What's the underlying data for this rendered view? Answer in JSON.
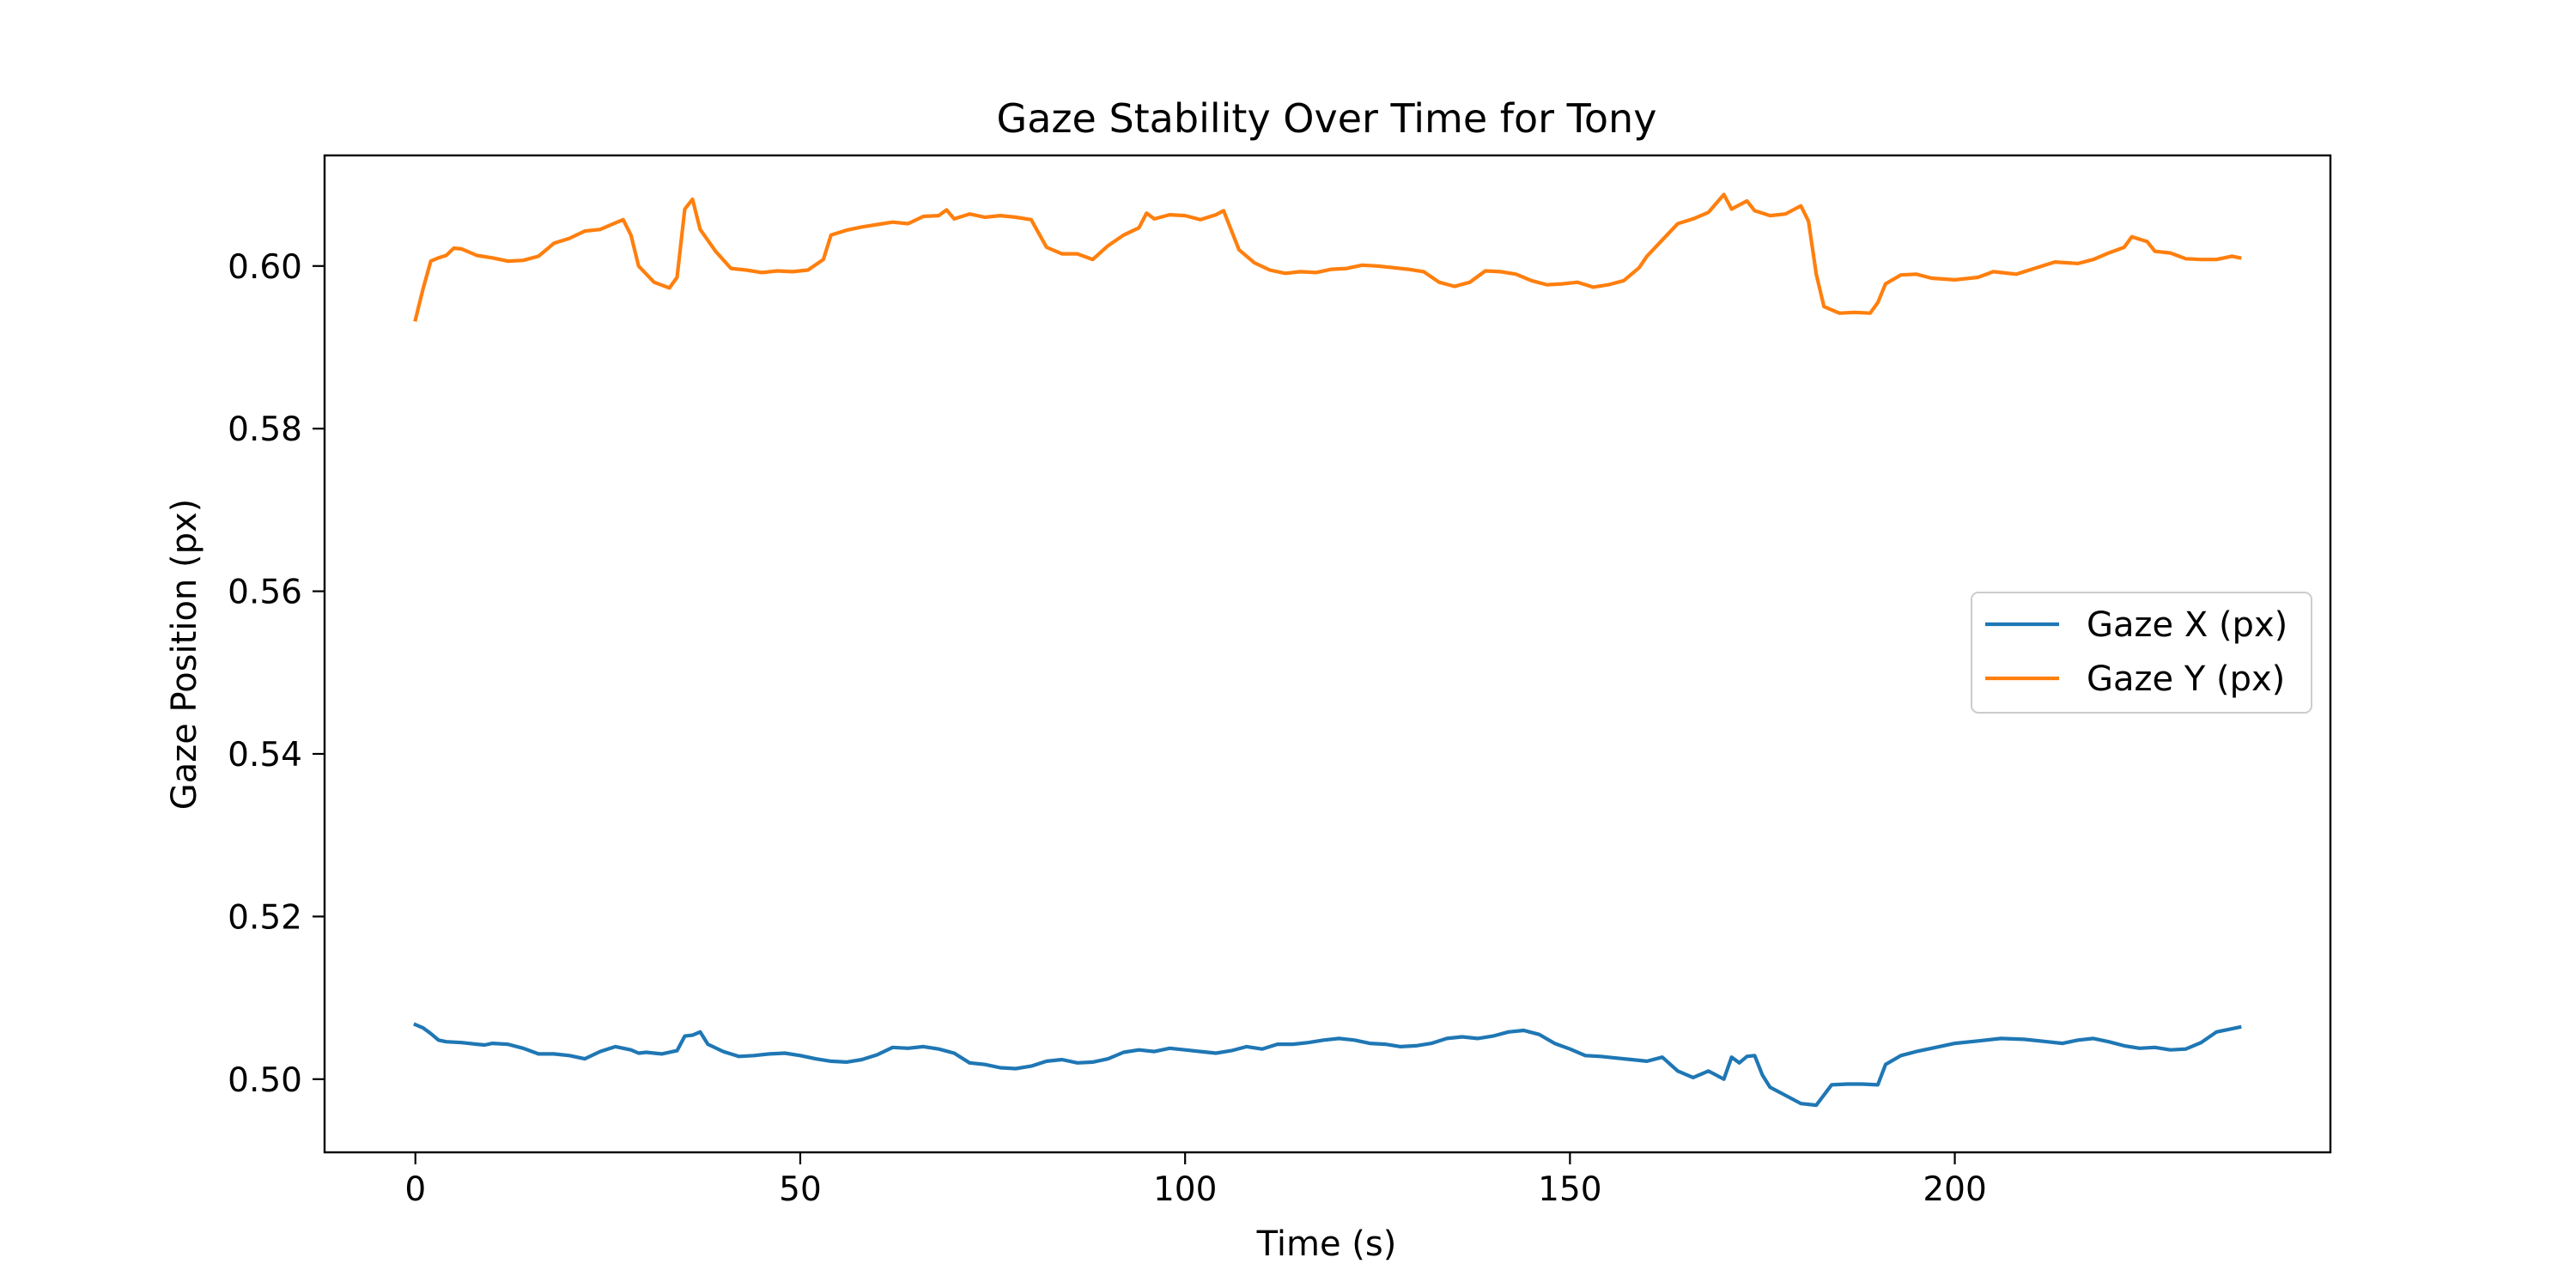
{
  "chart_data": {
    "type": "line",
    "title": "Gaze Stability Over Time for Tony",
    "xlabel": "Time (s)",
    "ylabel": "Gaze Position (px)",
    "xlim": [
      -11.8,
      248.8
    ],
    "ylim": [
      0.491,
      0.6136
    ],
    "xticks": [
      0,
      50,
      100,
      150,
      200
    ],
    "yticks": [
      0.5,
      0.52,
      0.54,
      0.56,
      0.58,
      0.6
    ],
    "xtick_labels": [
      "0",
      "50",
      "100",
      "150",
      "200"
    ],
    "ytick_labels": [
      "0.50",
      "0.52",
      "0.54",
      "0.56",
      "0.58",
      "0.60"
    ],
    "grid": false,
    "legend_position": "center-right",
    "series": [
      {
        "name": "Gaze X (px)",
        "color": "#1f77b4",
        "points": [
          [
            0,
            0.5067
          ],
          [
            1,
            0.5063
          ],
          [
            2,
            0.5056
          ],
          [
            3,
            0.5048
          ],
          [
            4,
            0.5046
          ],
          [
            6,
            0.5045
          ],
          [
            8,
            0.5043
          ],
          [
            9,
            0.5042
          ],
          [
            10,
            0.5044
          ],
          [
            12,
            0.5043
          ],
          [
            14,
            0.5038
          ],
          [
            16,
            0.5031
          ],
          [
            18,
            0.5031
          ],
          [
            20,
            0.5029
          ],
          [
            22,
            0.5025
          ],
          [
            24,
            0.5034
          ],
          [
            26,
            0.504
          ],
          [
            28,
            0.5036
          ],
          [
            29,
            0.5032
          ],
          [
            30,
            0.5033
          ],
          [
            32,
            0.5031
          ],
          [
            34,
            0.5035
          ],
          [
            35,
            0.5053
          ],
          [
            36,
            0.5054
          ],
          [
            37,
            0.5058
          ],
          [
            38,
            0.5043
          ],
          [
            40,
            0.5034
          ],
          [
            42,
            0.5028
          ],
          [
            44,
            0.5029
          ],
          [
            46,
            0.5031
          ],
          [
            48,
            0.5032
          ],
          [
            50,
            0.5029
          ],
          [
            52,
            0.5025
          ],
          [
            54,
            0.5022
          ],
          [
            56,
            0.5021
          ],
          [
            58,
            0.5024
          ],
          [
            60,
            0.503
          ],
          [
            62,
            0.5039
          ],
          [
            64,
            0.5038
          ],
          [
            66,
            0.504
          ],
          [
            68,
            0.5037
          ],
          [
            70,
            0.5032
          ],
          [
            72,
            0.502
          ],
          [
            74,
            0.5018
          ],
          [
            76,
            0.5014
          ],
          [
            78,
            0.5013
          ],
          [
            80,
            0.5016
          ],
          [
            82,
            0.5022
          ],
          [
            84,
            0.5024
          ],
          [
            86,
            0.502
          ],
          [
            88,
            0.5021
          ],
          [
            90,
            0.5025
          ],
          [
            92,
            0.5033
          ],
          [
            94,
            0.5036
          ],
          [
            96,
            0.5034
          ],
          [
            98,
            0.5038
          ],
          [
            100,
            0.5036
          ],
          [
            102,
            0.5034
          ],
          [
            104,
            0.5032
          ],
          [
            106,
            0.5035
          ],
          [
            108,
            0.504
          ],
          [
            110,
            0.5037
          ],
          [
            112,
            0.5043
          ],
          [
            114,
            0.5043
          ],
          [
            116,
            0.5045
          ],
          [
            118,
            0.5048
          ],
          [
            120,
            0.505
          ],
          [
            122,
            0.5048
          ],
          [
            124,
            0.5044
          ],
          [
            126,
            0.5043
          ],
          [
            128,
            0.504
          ],
          [
            130,
            0.5041
          ],
          [
            132,
            0.5044
          ],
          [
            134,
            0.505
          ],
          [
            136,
            0.5052
          ],
          [
            138,
            0.505
          ],
          [
            140,
            0.5053
          ],
          [
            142,
            0.5058
          ],
          [
            144,
            0.506
          ],
          [
            146,
            0.5055
          ],
          [
            148,
            0.5044
          ],
          [
            150,
            0.5037
          ],
          [
            152,
            0.5029
          ],
          [
            154,
            0.5028
          ],
          [
            156,
            0.5026
          ],
          [
            158,
            0.5024
          ],
          [
            160,
            0.5022
          ],
          [
            162,
            0.5027
          ],
          [
            164,
            0.501
          ],
          [
            166,
            0.5002
          ],
          [
            168,
            0.501
          ],
          [
            170,
            0.5
          ],
          [
            171,
            0.5027
          ],
          [
            172,
            0.502
          ],
          [
            173,
            0.5028
          ],
          [
            174,
            0.5029
          ],
          [
            175,
            0.5005
          ],
          [
            176,
            0.499
          ],
          [
            178,
            0.498
          ],
          [
            180,
            0.497
          ],
          [
            182,
            0.4968
          ],
          [
            184,
            0.4993
          ],
          [
            186,
            0.4994
          ],
          [
            188,
            0.4994
          ],
          [
            190,
            0.4993
          ],
          [
            191,
            0.5018
          ],
          [
            193,
            0.5029
          ],
          [
            195,
            0.5034
          ],
          [
            197,
            0.5038
          ],
          [
            200,
            0.5044
          ],
          [
            203,
            0.5047
          ],
          [
            206,
            0.505
          ],
          [
            209,
            0.5049
          ],
          [
            212,
            0.5046
          ],
          [
            214,
            0.5044
          ],
          [
            216,
            0.5048
          ],
          [
            218,
            0.505
          ],
          [
            220,
            0.5046
          ],
          [
            222,
            0.5041
          ],
          [
            224,
            0.5038
          ],
          [
            226,
            0.5039
          ],
          [
            228,
            0.5036
          ],
          [
            230,
            0.5037
          ],
          [
            232,
            0.5045
          ],
          [
            234,
            0.5058
          ],
          [
            236,
            0.5062
          ],
          [
            237,
            0.5064
          ]
        ]
      },
      {
        "name": "Gaze Y (px)",
        "color": "#ff7f0e",
        "points": [
          [
            0,
            0.5934
          ],
          [
            1,
            0.5972
          ],
          [
            2,
            0.6006
          ],
          [
            3,
            0.601
          ],
          [
            4,
            0.6013
          ],
          [
            5,
            0.6022
          ],
          [
            6,
            0.6021
          ],
          [
            8,
            0.6013
          ],
          [
            10,
            0.601
          ],
          [
            12,
            0.6006
          ],
          [
            14,
            0.6007
          ],
          [
            16,
            0.6012
          ],
          [
            18,
            0.6028
          ],
          [
            20,
            0.6034
          ],
          [
            22,
            0.6043
          ],
          [
            24,
            0.6045
          ],
          [
            26,
            0.6053
          ],
          [
            27,
            0.6057
          ],
          [
            28,
            0.6038
          ],
          [
            29,
            0.6
          ],
          [
            31,
            0.598
          ],
          [
            33,
            0.5973
          ],
          [
            34,
            0.5986
          ],
          [
            35,
            0.607
          ],
          [
            36,
            0.6082
          ],
          [
            37,
            0.6045
          ],
          [
            39,
            0.6018
          ],
          [
            41,
            0.5997
          ],
          [
            43,
            0.5995
          ],
          [
            45,
            0.5992
          ],
          [
            47,
            0.5994
          ],
          [
            49,
            0.5993
          ],
          [
            51,
            0.5995
          ],
          [
            53,
            0.6008
          ],
          [
            54,
            0.6038
          ],
          [
            56,
            0.6044
          ],
          [
            58,
            0.6048
          ],
          [
            60,
            0.6051
          ],
          [
            62,
            0.6054
          ],
          [
            64,
            0.6052
          ],
          [
            66,
            0.6061
          ],
          [
            68,
            0.6062
          ],
          [
            69,
            0.6069
          ],
          [
            70,
            0.6058
          ],
          [
            72,
            0.6064
          ],
          [
            74,
            0.606
          ],
          [
            76,
            0.6062
          ],
          [
            78,
            0.606
          ],
          [
            80,
            0.6057
          ],
          [
            82,
            0.6023
          ],
          [
            84,
            0.6015
          ],
          [
            86,
            0.6015
          ],
          [
            88,
            0.6008
          ],
          [
            90,
            0.6025
          ],
          [
            92,
            0.6038
          ],
          [
            94,
            0.6047
          ],
          [
            95,
            0.6065
          ],
          [
            96,
            0.6058
          ],
          [
            98,
            0.6063
          ],
          [
            100,
            0.6062
          ],
          [
            102,
            0.6057
          ],
          [
            104,
            0.6063
          ],
          [
            105,
            0.6068
          ],
          [
            107,
            0.602
          ],
          [
            109,
            0.6004
          ],
          [
            111,
            0.5995
          ],
          [
            113,
            0.5991
          ],
          [
            115,
            0.5993
          ],
          [
            117,
            0.5992
          ],
          [
            119,
            0.5996
          ],
          [
            121,
            0.5997
          ],
          [
            123,
            0.6001
          ],
          [
            125,
            0.6
          ],
          [
            127,
            0.5998
          ],
          [
            129,
            0.5996
          ],
          [
            131,
            0.5993
          ],
          [
            133,
            0.598
          ],
          [
            135,
            0.5975
          ],
          [
            137,
            0.598
          ],
          [
            139,
            0.5994
          ],
          [
            141,
            0.5993
          ],
          [
            143,
            0.599
          ],
          [
            145,
            0.5982
          ],
          [
            147,
            0.5977
          ],
          [
            149,
            0.5978
          ],
          [
            151,
            0.598
          ],
          [
            153,
            0.5974
          ],
          [
            155,
            0.5977
          ],
          [
            157,
            0.5982
          ],
          [
            159,
            0.5998
          ],
          [
            160,
            0.6012
          ],
          [
            162,
            0.6032
          ],
          [
            164,
            0.6052
          ],
          [
            166,
            0.6058
          ],
          [
            168,
            0.6066
          ],
          [
            170,
            0.6088
          ],
          [
            171,
            0.607
          ],
          [
            173,
            0.608
          ],
          [
            174,
            0.6068
          ],
          [
            176,
            0.6062
          ],
          [
            178,
            0.6064
          ],
          [
            180,
            0.6074
          ],
          [
            181,
            0.6055
          ],
          [
            182,
            0.599
          ],
          [
            183,
            0.595
          ],
          [
            185,
            0.5942
          ],
          [
            187,
            0.5943
          ],
          [
            189,
            0.5942
          ],
          [
            190,
            0.5955
          ],
          [
            191,
            0.5978
          ],
          [
            193,
            0.5989
          ],
          [
            195,
            0.599
          ],
          [
            197,
            0.5985
          ],
          [
            200,
            0.5983
          ],
          [
            203,
            0.5986
          ],
          [
            205,
            0.5993
          ],
          [
            208,
            0.599
          ],
          [
            211,
            0.5999
          ],
          [
            213,
            0.6005
          ],
          [
            216,
            0.6003
          ],
          [
            218,
            0.6008
          ],
          [
            220,
            0.6016
          ],
          [
            222,
            0.6023
          ],
          [
            223,
            0.6036
          ],
          [
            225,
            0.603
          ],
          [
            226,
            0.6018
          ],
          [
            228,
            0.6016
          ],
          [
            230,
            0.6009
          ],
          [
            232,
            0.6008
          ],
          [
            234,
            0.6008
          ],
          [
            236,
            0.6012
          ],
          [
            237,
            0.601
          ]
        ]
      }
    ]
  }
}
